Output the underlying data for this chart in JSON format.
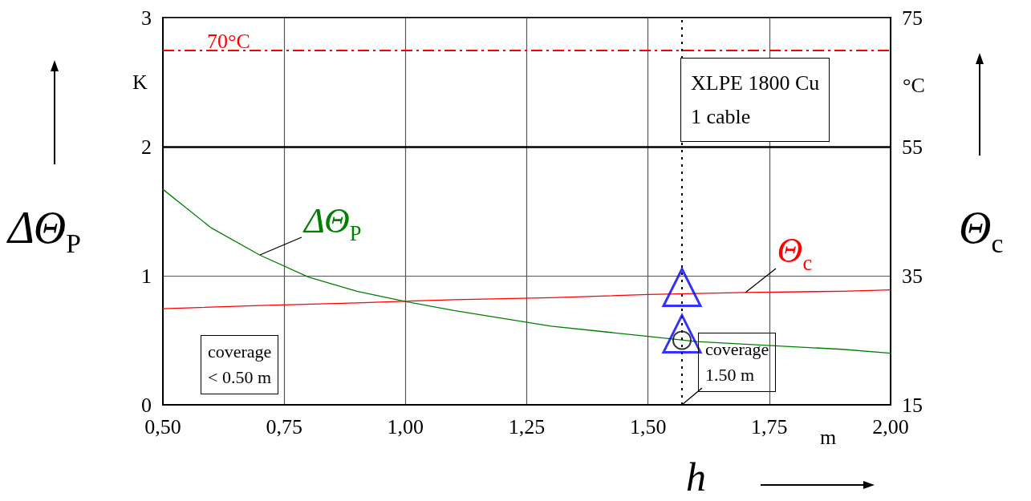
{
  "chart_data": {
    "type": "line",
    "xlabel": "h",
    "ylabel": "ΔΘ$_{P}$",
    "y2label": "Θ$_{c}$",
    "xlim": [
      0.5,
      2.0
    ],
    "xticks": [
      {
        "value": 0.5,
        "label": "0,50"
      },
      {
        "value": 0.75,
        "label": "0,75"
      },
      {
        "value": 1.0,
        "label": "1,00"
      },
      {
        "value": 1.25,
        "label": "1,25"
      },
      {
        "value": 1.5,
        "label": "1,50"
      },
      {
        "value": 1.75,
        "label": "1,75"
      },
      {
        "value": 2.0,
        "label": "2,00"
      }
    ],
    "ylim": [
      0,
      3
    ],
    "yticks": [
      0,
      1,
      2,
      3
    ],
    "y2lim": [
      15,
      75
    ],
    "y2ticks": [
      15,
      35,
      55,
      75
    ],
    "grid": true,
    "legend": false,
    "marker": "none",
    "line_style": "solid",
    "series": [
      {
        "name": "ΔΘ$_{P}$",
        "color": "#008000",
        "x": [
          0.5,
          0.6,
          0.7,
          0.8,
          0.9,
          1.0,
          1.1,
          1.2,
          1.3,
          1.4,
          1.5,
          1.6,
          1.7,
          1.8,
          1.9,
          2.0
        ],
        "values": [
          1.67,
          1.37,
          1.16,
          0.99,
          0.88,
          0.8,
          0.73,
          0.67,
          0.61,
          0.57,
          0.53,
          0.49,
          0.47,
          0.45,
          0.43,
          0.4
        ]
      },
      {
        "name": "Θ$_{c}$",
        "color": "#ff0000",
        "axis": "y2",
        "x": [
          0.5,
          0.7,
          0.9,
          1.1,
          1.3,
          1.5,
          1.7,
          1.9,
          2.0
        ],
        "values": [
          29.9,
          30.4,
          30.8,
          31.3,
          31.6,
          32.1,
          32.4,
          32.6,
          32.8
        ]
      },
      {
        "type": "scatter",
        "marker": "triangle",
        "color": "#0000ff",
        "x": [
          1.57,
          1.57
        ],
        "values": [
          0.91,
          0.55
        ]
      },
      {
        "type": "scatter",
        "marker": "circle",
        "color": "#000000",
        "x": [
          1.57
        ],
        "values": [
          0.5
        ]
      }
    ],
    "ref_lines": [
      {
        "axis": "y2",
        "value": 70,
        "label": "70°C",
        "color": "#ff0000",
        "line_style": "dashed"
      },
      {
        "axis": "y",
        "value": 2,
        "label": null,
        "color": "#000000",
        "line_style": "solid"
      },
      {
        "axis": "x",
        "value": 1.57,
        "label": null,
        "color": "#000000",
        "line_style": "dotted"
      }
    ],
    "annotations": [
      "coverage\n< 0.50 m",
      "coverage\n1.50 m",
      "XLPE 1800 Cu\n1 cable",
      "K",
      "°C",
      "m"
    ]
  }
}
